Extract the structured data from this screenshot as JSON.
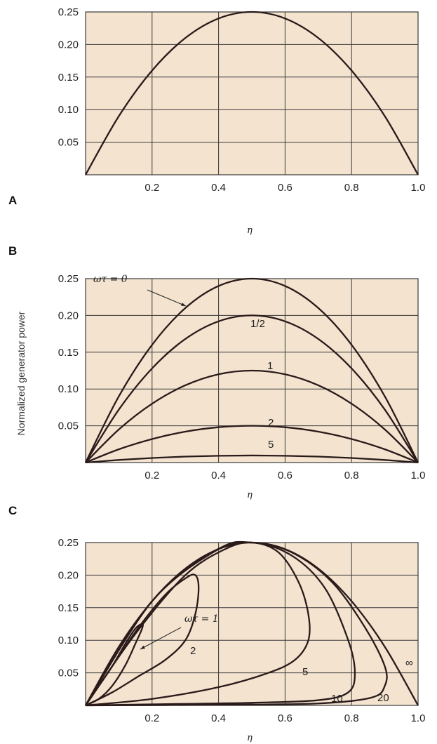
{
  "figure": {
    "ylabel": "Normalized generator power",
    "panel_labels": [
      "A",
      "B",
      "C"
    ]
  },
  "chart_data": [
    {
      "panel": "A",
      "type": "line",
      "xlabel": "η",
      "xlim": [
        0,
        1.0
      ],
      "ylim": [
        0,
        0.25
      ],
      "xticks": [
        "0.2",
        "0.4",
        "0.6",
        "0.8",
        "1.0"
      ],
      "yticks": [
        "0.05",
        "0.10",
        "0.15",
        "0.20",
        "0.25"
      ],
      "grid": true,
      "series": [
        {
          "x": [
            0,
            0.1,
            0.2,
            0.3,
            0.4,
            0.5,
            0.6,
            0.7,
            0.8,
            0.9,
            1.0
          ],
          "y": [
            0,
            0.09,
            0.16,
            0.21,
            0.24,
            0.25,
            0.24,
            0.21,
            0.16,
            0.09,
            0
          ]
        }
      ]
    },
    {
      "panel": "B",
      "type": "line",
      "xlabel": "η",
      "xlim": [
        0,
        1.0
      ],
      "ylim": [
        0,
        0.25
      ],
      "xticks": [
        "0.2",
        "0.4",
        "0.6",
        "0.8",
        "1.0"
      ],
      "yticks": [
        "0.05",
        "0.10",
        "0.15",
        "0.20",
        "0.25"
      ],
      "grid": true,
      "series": [
        {
          "name": "ωτ = 0",
          "x": [
            0,
            0.1,
            0.2,
            0.3,
            0.4,
            0.5,
            0.6,
            0.7,
            0.8,
            0.9,
            1.0
          ],
          "y": [
            0,
            0.09,
            0.16,
            0.21,
            0.24,
            0.25,
            0.24,
            0.21,
            0.16,
            0.09,
            0
          ]
        },
        {
          "name": "1/2",
          "x": [
            0,
            0.1,
            0.2,
            0.3,
            0.4,
            0.5,
            0.6,
            0.7,
            0.8,
            0.9,
            1.0
          ],
          "y": [
            0,
            0.072,
            0.128,
            0.168,
            0.192,
            0.2,
            0.192,
            0.168,
            0.128,
            0.072,
            0
          ]
        },
        {
          "name": "1",
          "x": [
            0,
            0.1,
            0.2,
            0.3,
            0.4,
            0.5,
            0.6,
            0.7,
            0.8,
            0.9,
            1.0
          ],
          "y": [
            0,
            0.045,
            0.08,
            0.105,
            0.12,
            0.125,
            0.12,
            0.105,
            0.08,
            0.045,
            0
          ]
        },
        {
          "name": "2",
          "x": [
            0,
            0.1,
            0.2,
            0.3,
            0.4,
            0.5,
            0.6,
            0.7,
            0.8,
            0.9,
            1.0
          ],
          "y": [
            0,
            0.018,
            0.032,
            0.042,
            0.048,
            0.05,
            0.048,
            0.042,
            0.032,
            0.018,
            0
          ]
        },
        {
          "name": "5",
          "x": [
            0,
            0.1,
            0.2,
            0.3,
            0.4,
            0.5,
            0.6,
            0.7,
            0.8,
            0.9,
            1.0
          ],
          "y": [
            0,
            0.0035,
            0.0062,
            0.0081,
            0.0092,
            0.0096,
            0.0092,
            0.0081,
            0.0062,
            0.0035,
            0
          ]
        }
      ],
      "annotations": [
        {
          "text": "ωτ = 0"
        },
        {
          "text": "1/2"
        },
        {
          "text": "1"
        },
        {
          "text": "2"
        },
        {
          "text": "5"
        }
      ]
    },
    {
      "panel": "C",
      "type": "line",
      "xlabel": "η",
      "xlim": [
        0,
        1.0
      ],
      "ylim": [
        0,
        0.25
      ],
      "xticks": [
        "0.2",
        "0.4",
        "0.6",
        "0.8",
        "1.0"
      ],
      "yticks": [
        "0.05",
        "0.10",
        "0.15",
        "0.20",
        "0.25"
      ],
      "grid": true,
      "series": [
        {
          "name": "ωτ = 1",
          "x": [
            0,
            0.04,
            0.08,
            0.12,
            0.15,
            0.17,
            0.17,
            0.15,
            0.12,
            0.08,
            0.04,
            0
          ],
          "y": [
            0,
            0.03,
            0.06,
            0.095,
            0.118,
            0.125,
            0.118,
            0.095,
            0.062,
            0.03,
            0.01,
            0
          ]
        },
        {
          "name": "2",
          "x": [
            0,
            0.08,
            0.16,
            0.24,
            0.3,
            0.33,
            0.34,
            0.33,
            0.3,
            0.24,
            0.16,
            0.08,
            0
          ],
          "y": [
            0,
            0.06,
            0.12,
            0.17,
            0.195,
            0.2,
            0.18,
            0.14,
            0.1,
            0.07,
            0.045,
            0.02,
            0
          ]
        },
        {
          "name": "5",
          "x": [
            0,
            0.15,
            0.3,
            0.42,
            0.5,
            0.58,
            0.64,
            0.67,
            0.67,
            0.63,
            0.55,
            0.4,
            0.2,
            0
          ],
          "y": [
            0,
            0.11,
            0.2,
            0.24,
            0.25,
            0.235,
            0.19,
            0.14,
            0.1,
            0.07,
            0.05,
            0.028,
            0.01,
            0
          ]
        },
        {
          "name": "10",
          "x": [
            0,
            0.2,
            0.38,
            0.5,
            0.62,
            0.72,
            0.79,
            0.81,
            0.79,
            0.7,
            0.5,
            0.25,
            0
          ],
          "y": [
            0,
            0.16,
            0.235,
            0.25,
            0.23,
            0.18,
            0.1,
            0.05,
            0.02,
            0.008,
            0.004,
            0.002,
            0
          ]
        },
        {
          "name": "20",
          "x": [
            0,
            0.2,
            0.4,
            0.5,
            0.62,
            0.74,
            0.84,
            0.9,
            0.9,
            0.86,
            0.7,
            0.4,
            0
          ],
          "y": [
            0,
            0.16,
            0.24,
            0.25,
            0.235,
            0.19,
            0.12,
            0.06,
            0.03,
            0.012,
            0.003,
            0.001,
            0
          ]
        },
        {
          "name": "∞",
          "x": [
            0,
            0.1,
            0.2,
            0.3,
            0.4,
            0.5,
            0.6,
            0.7,
            0.8,
            0.9,
            1.0
          ],
          "y": [
            0,
            0.09,
            0.16,
            0.21,
            0.24,
            0.25,
            0.24,
            0.21,
            0.16,
            0.09,
            0
          ]
        }
      ],
      "annotations": [
        {
          "text": "ωτ = 1"
        },
        {
          "text": "2"
        },
        {
          "text": "5"
        },
        {
          "text": "10"
        },
        {
          "text": "20"
        },
        {
          "text": "∞"
        }
      ]
    }
  ],
  "style": {
    "plot_bg": "#f3e3cf",
    "grid_color": "#3a3a3a",
    "curve_color": "#2a1a1a"
  }
}
